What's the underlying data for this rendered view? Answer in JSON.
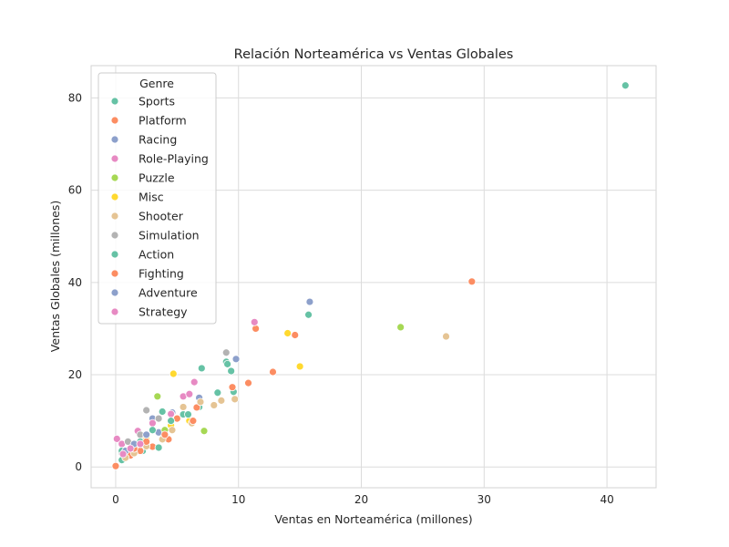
{
  "chart_data": {
    "type": "scatter",
    "title": "Relación Norteamérica vs Ventas Globales",
    "xlabel": "Ventas en Norteamérica (millones)",
    "ylabel": "Ventas Globales (millones)",
    "xlim": [
      -2,
      44
    ],
    "ylim": [
      -4.5,
      87
    ],
    "xticks": [
      0,
      10,
      20,
      30,
      40
    ],
    "yticks": [
      0,
      20,
      40,
      60,
      80
    ],
    "grid": true,
    "legend": {
      "title": "Genre",
      "placement": "top-left"
    },
    "series": [
      {
        "name": "Sports",
        "color": "#66c2a5",
        "points": [
          [
            41.5,
            82.7
          ],
          [
            15.7,
            33.0
          ],
          [
            9.0,
            22.8
          ],
          [
            9.1,
            22.3
          ],
          [
            9.4,
            20.8
          ],
          [
            7.0,
            21.4
          ],
          [
            8.3,
            16.1
          ],
          [
            9.6,
            16.3
          ],
          [
            6.8,
            13.0
          ],
          [
            5.5,
            11.4
          ],
          [
            3.8,
            12.0
          ],
          [
            2.5,
            5.5
          ],
          [
            1.8,
            4.5
          ],
          [
            3.5,
            4.2
          ],
          [
            2.2,
            3.5
          ],
          [
            1.0,
            2.4
          ],
          [
            0.5,
            1.5
          ]
        ]
      },
      {
        "name": "Platform",
        "color": "#fc8d62",
        "points": [
          [
            29.0,
            40.2
          ],
          [
            11.4,
            30.0
          ],
          [
            14.6,
            28.6
          ],
          [
            12.8,
            20.6
          ],
          [
            10.8,
            18.2
          ],
          [
            9.5,
            17.3
          ],
          [
            6.6,
            12.9
          ],
          [
            5.0,
            10.5
          ],
          [
            4.3,
            6.0
          ],
          [
            3.0,
            4.4
          ],
          [
            2.0,
            3.5
          ],
          [
            1.2,
            2.5
          ],
          [
            0.0,
            0.2
          ]
        ]
      },
      {
        "name": "Racing",
        "color": "#8da0cb",
        "points": [
          [
            15.8,
            35.8
          ],
          [
            9.8,
            23.4
          ],
          [
            6.8,
            15.0
          ],
          [
            4.6,
            11.8
          ],
          [
            3.0,
            10.5
          ],
          [
            3.5,
            7.5
          ],
          [
            2.2,
            6.5
          ],
          [
            1.3,
            4.0
          ]
        ]
      },
      {
        "name": "Role-Playing",
        "color": "#e78ac3",
        "points": [
          [
            11.3,
            31.4
          ],
          [
            6.4,
            18.4
          ],
          [
            5.5,
            15.3
          ],
          [
            6.0,
            15.8
          ],
          [
            4.5,
            11.5
          ],
          [
            3.0,
            9.5
          ],
          [
            1.8,
            7.8
          ],
          [
            1.0,
            5.5
          ],
          [
            0.1,
            6.1
          ],
          [
            0.5,
            5.0
          ]
        ]
      },
      {
        "name": "Puzzle",
        "color": "#a6d854",
        "points": [
          [
            23.2,
            30.3
          ],
          [
            3.4,
            15.3
          ],
          [
            7.2,
            7.8
          ],
          [
            4.0,
            8.0
          ],
          [
            2.0,
            5.0
          ]
        ]
      },
      {
        "name": "Misc",
        "color": "#ffd92f",
        "points": [
          [
            14.0,
            29.0
          ],
          [
            15.0,
            21.8
          ],
          [
            4.7,
            20.2
          ],
          [
            6.0,
            10.0
          ],
          [
            4.5,
            9.0
          ],
          [
            2.5,
            6.0
          ],
          [
            1.5,
            4.5
          ]
        ]
      },
      {
        "name": "Shooter",
        "color": "#e5c494",
        "points": [
          [
            26.9,
            28.3
          ],
          [
            9.7,
            14.7
          ],
          [
            8.0,
            13.4
          ],
          [
            8.6,
            14.4
          ],
          [
            6.9,
            14.1
          ],
          [
            5.5,
            13.0
          ],
          [
            6.2,
            9.5
          ],
          [
            4.6,
            8.0
          ],
          [
            3.8,
            6.0
          ],
          [
            2.5,
            4.5
          ],
          [
            1.5,
            3.0
          ],
          [
            0.8,
            2.0
          ]
        ]
      },
      {
        "name": "Simulation",
        "color": "#b3b3b3",
        "points": [
          [
            9.0,
            24.8
          ],
          [
            2.5,
            12.3
          ],
          [
            3.5,
            10.5
          ],
          [
            2.0,
            7.0
          ],
          [
            1.0,
            5.5
          ],
          [
            0.5,
            3.0
          ]
        ]
      },
      {
        "name": "Action",
        "color": "#66c2a5",
        "points": [
          [
            5.9,
            11.4
          ],
          [
            4.5,
            10.0
          ],
          [
            3.0,
            8.0
          ],
          [
            2.0,
            5.5
          ],
          [
            1.5,
            4.0
          ],
          [
            3.5,
            4.2
          ],
          [
            0.5,
            3.5
          ]
        ]
      },
      {
        "name": "Fighting",
        "color": "#fc8d62",
        "points": [
          [
            6.3,
            10.0
          ],
          [
            4.0,
            7.0
          ],
          [
            2.5,
            5.5
          ],
          [
            1.5,
            4.0
          ]
        ]
      },
      {
        "name": "Adventure",
        "color": "#8da0cb",
        "points": [
          [
            2.5,
            7.0
          ],
          [
            1.5,
            5.0
          ],
          [
            0.8,
            3.5
          ]
        ]
      },
      {
        "name": "Strategy",
        "color": "#e78ac3",
        "points": [
          [
            2.0,
            5.0
          ],
          [
            1.2,
            4.0
          ],
          [
            0.6,
            2.8
          ]
        ]
      }
    ]
  }
}
